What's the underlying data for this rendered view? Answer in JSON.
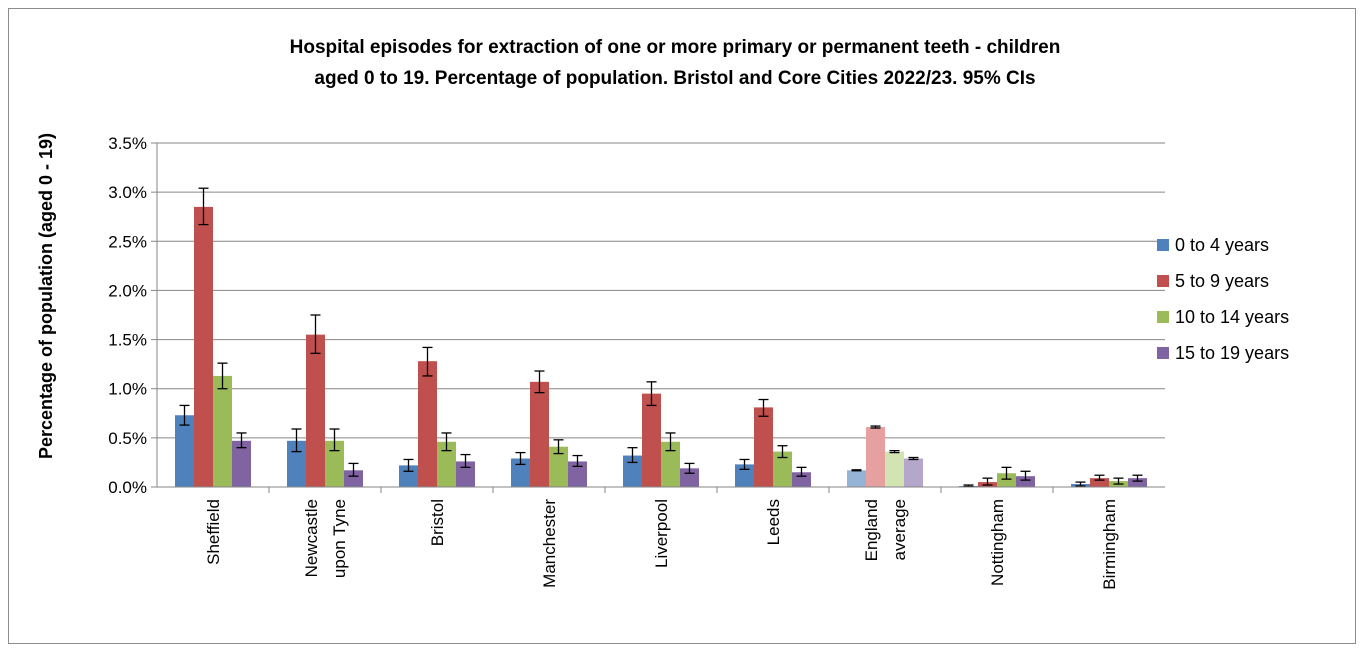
{
  "chart_data": {
    "type": "bar",
    "title_lines": [
      "Hospital episodes for extraction of one or more primary or permanent teeth - children",
      "aged 0 to 19. Percentage of population. Bristol and Core Cities 2022/23. 95% CIs"
    ],
    "ylabel": "Percentage of population (aged 0 - 19)",
    "xlabel": "",
    "ylim": [
      0,
      3.5
    ],
    "y_ticks": [
      "0.0%",
      "0.5%",
      "1.0%",
      "1.5%",
      "2.0%",
      "2.5%",
      "3.0%",
      "3.5%"
    ],
    "grid": true,
    "legend_position": "right",
    "categories": [
      [
        "Sheffield"
      ],
      [
        "Newcastle",
        "upon Tyne"
      ],
      [
        "Bristol"
      ],
      [
        "Manchester"
      ],
      [
        "Liverpool"
      ],
      [
        "Leeds"
      ],
      [
        "England",
        "average"
      ],
      [
        "Nottingham"
      ],
      [
        "Birmingham"
      ]
    ],
    "highlighted_category_index": 6,
    "series": [
      {
        "name": "0 to 4 years",
        "color": "#4f81bd",
        "light_color": "#95b3d7",
        "values": [
          0.73,
          0.47,
          0.22,
          0.29,
          0.32,
          0.23,
          0.17,
          0.01,
          0.03
        ],
        "ci_lower": [
          0.63,
          0.36,
          0.16,
          0.23,
          0.25,
          0.18,
          0.165,
          0.005,
          0.01
        ],
        "ci_upper": [
          0.83,
          0.59,
          0.28,
          0.35,
          0.4,
          0.28,
          0.175,
          0.02,
          0.05
        ]
      },
      {
        "name": "5 to 9 years",
        "color": "#c0504d",
        "light_color": "#e6a09f",
        "values": [
          2.85,
          1.55,
          1.28,
          1.07,
          0.95,
          0.81,
          0.61,
          0.05,
          0.09
        ],
        "ci_lower": [
          2.67,
          1.36,
          1.13,
          0.96,
          0.83,
          0.72,
          0.6,
          0.02,
          0.07
        ],
        "ci_upper": [
          3.04,
          1.75,
          1.42,
          1.18,
          1.07,
          0.89,
          0.62,
          0.09,
          0.12
        ]
      },
      {
        "name": "10 to 14 years",
        "color": "#9bbb59",
        "light_color": "#d3e4b3",
        "values": [
          1.13,
          0.47,
          0.46,
          0.41,
          0.46,
          0.36,
          0.36,
          0.14,
          0.06
        ],
        "ci_lower": [
          1.0,
          0.37,
          0.37,
          0.34,
          0.37,
          0.3,
          0.35,
          0.08,
          0.03
        ],
        "ci_upper": [
          1.26,
          0.59,
          0.55,
          0.48,
          0.55,
          0.42,
          0.37,
          0.2,
          0.09
        ]
      },
      {
        "name": "15 to 19 years",
        "color": "#8064a2",
        "light_color": "#b4a7c9",
        "values": [
          0.47,
          0.17,
          0.26,
          0.26,
          0.19,
          0.15,
          0.29,
          0.11,
          0.09
        ],
        "ci_lower": [
          0.4,
          0.11,
          0.2,
          0.21,
          0.14,
          0.11,
          0.28,
          0.07,
          0.06
        ],
        "ci_upper": [
          0.55,
          0.24,
          0.33,
          0.32,
          0.24,
          0.2,
          0.3,
          0.16,
          0.12
        ]
      }
    ]
  }
}
